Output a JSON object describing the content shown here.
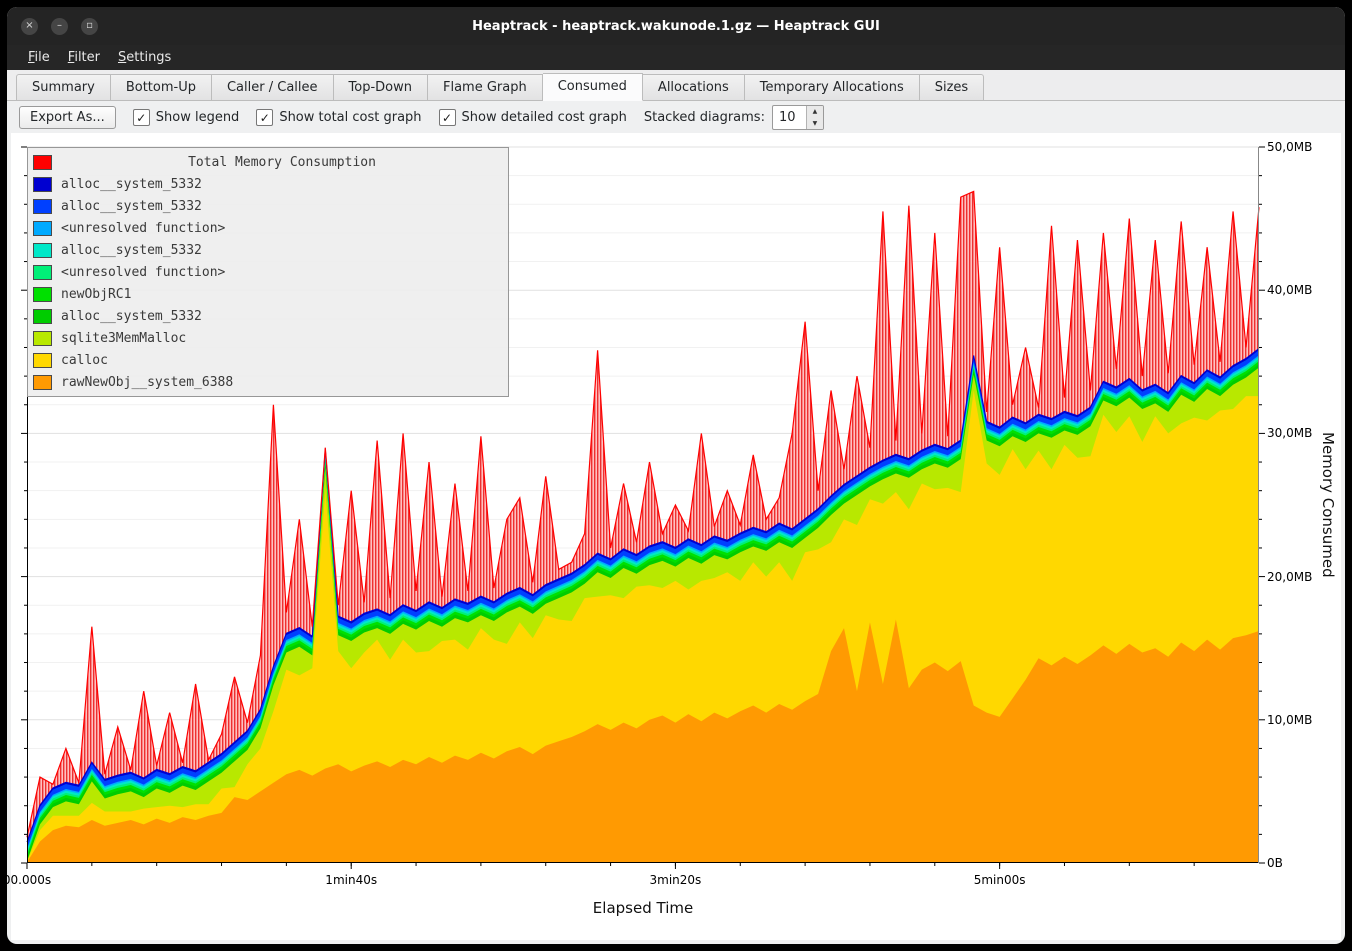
{
  "window": {
    "title": "Heaptrack - heaptrack.wakunode.1.gz — Heaptrack GUI",
    "buttons": [
      {
        "name": "close",
        "glyph": "×"
      },
      {
        "name": "minimize",
        "glyph": "–"
      },
      {
        "name": "maximize",
        "glyph": "▫"
      }
    ]
  },
  "menu": {
    "items": [
      {
        "label": "File"
      },
      {
        "label": "Filter"
      },
      {
        "label": "Settings"
      }
    ]
  },
  "tabs": {
    "items": [
      "Summary",
      "Bottom-Up",
      "Caller / Callee",
      "Top-Down",
      "Flame Graph",
      "Consumed",
      "Allocations",
      "Temporary Allocations",
      "Sizes"
    ],
    "active": "Consumed"
  },
  "toolbar": {
    "export_label": "Export As...",
    "checkboxes": [
      {
        "label": "Show legend",
        "checked": true
      },
      {
        "label": "Show total cost graph",
        "checked": true
      },
      {
        "label": "Show detailed cost graph",
        "checked": true
      }
    ],
    "stacked_label": "Stacked diagrams:",
    "stacked_value": "10"
  },
  "chart_data": {
    "type": "area",
    "title": "Total Memory Consumption",
    "xlabel": "Elapsed Time",
    "ylabel": "Memory Consumed",
    "xlim_s": [
      0,
      380
    ],
    "ylim_mb": [
      0,
      50
    ],
    "grid": {
      "minor_step_mb": 2,
      "major_step_mb": 10
    },
    "legend_position": "top-left",
    "x_ticks": [
      {
        "t": 0,
        "label": "00.000s"
      },
      {
        "t": 100,
        "label": "1min40s"
      },
      {
        "t": 200,
        "label": "3min20s"
      },
      {
        "t": 300,
        "label": "5min00s"
      }
    ],
    "y_ticks": [
      {
        "v": 0,
        "label": "0B"
      },
      {
        "v": 10,
        "label": "10,0MB"
      },
      {
        "v": 20,
        "label": "20,0MB"
      },
      {
        "v": 30,
        "label": "30,0MB"
      },
      {
        "v": 40,
        "label": "40,0MB"
      },
      {
        "v": 50,
        "label": "50,0MB"
      }
    ],
    "x_start": 0,
    "x_step_s": 4,
    "total": {
      "name": "Total Memory Consumption",
      "color": "#ff0000",
      "values": [
        1.8,
        6.0,
        5.5,
        8.0,
        5.6,
        16.5,
        6.2,
        9.5,
        6.5,
        12.0,
        6.8,
        10.5,
        7.0,
        12.5,
        7.2,
        9.0,
        13.0,
        9.8,
        14.5,
        32.0,
        17.5,
        24.0,
        16.5,
        29.0,
        18.0,
        26.0,
        18.2,
        29.5,
        18.5,
        30.0,
        19.0,
        28.0,
        18.6,
        26.5,
        19.0,
        29.8,
        19.2,
        24.0,
        25.5,
        19.6,
        27.0,
        20.5,
        21.0,
        23.0,
        35.8,
        22.0,
        26.5,
        22.4,
        28.0,
        23.0,
        25.0,
        23.2,
        30.0,
        23.5,
        26.0,
        23.6,
        28.5,
        24.0,
        25.5,
        30.0,
        37.8,
        26.0,
        33.0,
        27.5,
        34.0,
        29.0,
        45.5,
        29.5,
        45.9,
        30.0,
        44.0,
        29.8,
        46.5,
        46.9,
        31.5,
        43.0,
        32.0,
        36.0,
        31.8,
        44.5,
        32.5,
        43.5,
        33.0,
        44.0,
        34.5,
        45.0,
        34.0,
        43.5,
        34.2,
        44.8,
        34.8,
        43.0,
        35.0,
        45.5,
        36.0,
        45.8
      ]
    },
    "stack": [
      {
        "name": "rawNewObj__system_6388",
        "color": "#ff9a02",
        "values": [
          0.05,
          1.5,
          2.3,
          2.6,
          2.5,
          3.0,
          2.6,
          2.8,
          3.0,
          2.7,
          3.1,
          2.8,
          3.2,
          3.0,
          3.3,
          3.5,
          4.6,
          4.4,
          5.0,
          5.6,
          6.2,
          6.5,
          6.1,
          6.6,
          6.9,
          6.4,
          6.8,
          7.1,
          6.7,
          7.2,
          6.9,
          7.4,
          7.0,
          7.5,
          7.2,
          7.7,
          7.3,
          7.8,
          8.1,
          7.6,
          8.2,
          8.5,
          8.8,
          9.2,
          9.7,
          9.3,
          9.8,
          9.4,
          10.0,
          10.3,
          9.8,
          10.4,
          9.9,
          10.5,
          10.1,
          10.6,
          11.0,
          10.5,
          11.1,
          10.7,
          11.3,
          11.8,
          14.8,
          16.4,
          12.0,
          16.8,
          12.5,
          17.0,
          12.2,
          13.5,
          14.0,
          13.4,
          14.1,
          11.0,
          10.5,
          10.2,
          11.5,
          12.8,
          14.3,
          13.8,
          14.4,
          13.9,
          14.5,
          15.2,
          14.6,
          15.3,
          14.7,
          15.0,
          14.4,
          15.4,
          14.8,
          15.6,
          14.9,
          15.7,
          15.9,
          16.2
        ]
      },
      {
        "name": "calloc",
        "color": "#ffd800",
        "values": [
          0.05,
          0.8,
          1.0,
          0.7,
          0.8,
          1.2,
          1.0,
          0.8,
          0.6,
          1.1,
          0.8,
          1.2,
          0.7,
          1.1,
          0.8,
          1.7,
          0.7,
          2.5,
          3.0,
          5.0,
          7.3,
          6.6,
          7.5,
          19.4,
          7.9,
          7.2,
          7.9,
          8.5,
          7.5,
          8.4,
          7.8,
          7.4,
          8.5,
          8.1,
          7.7,
          8.7,
          8.3,
          7.5,
          8.7,
          8.1,
          9.1,
          8.5,
          8.1,
          9.3,
          8.9,
          9.4,
          8.7,
          9.9,
          9.4,
          8.9,
          9.9,
          8.7,
          9.8,
          9.4,
          10.2,
          9.1,
          10.0,
          9.5,
          9.9,
          9.0,
          10.4,
          10.1,
          7.6,
          7.6,
          11.6,
          8.6,
          12.6,
          8.9,
          12.5,
          13.0,
          12.1,
          12.8,
          11.8,
          22.0,
          17.4,
          16.9,
          17.4,
          14.7,
          14.5,
          13.7,
          14.8,
          14.4,
          13.9,
          16.1,
          15.5,
          15.9,
          14.7,
          16.2,
          15.6,
          15.3,
          16.3,
          15.3,
          16.7,
          16.0,
          16.7,
          16.4
        ]
      },
      {
        "name": "sqlite3MemMalloc",
        "color": "#b8e800",
        "values": [
          0.02,
          0.4,
          0.6,
          1.0,
          0.8,
          1.5,
          0.9,
          1.2,
          1.4,
          0.8,
          1.3,
          0.9,
          1.5,
          1.0,
          1.6,
          1.1,
          1.8,
          1.0,
          1.4,
          1.8,
          1.2,
          2.0,
          0.9,
          1.6,
          1.1,
          1.9,
          1.4,
          0.8,
          1.8,
          1.1,
          1.6,
          2.1,
          1.0,
          1.5,
          1.9,
          0.9,
          1.3,
          2.2,
          1.1,
          1.7,
          0.8,
          1.5,
          2.0,
          1.0,
          1.7,
          1.2,
          2.1,
          0.9,
          1.4,
          1.9,
          1.0,
          2.2,
          1.2,
          1.6,
          0.9,
          2.0,
          1.1,
          1.8,
          1.4,
          2.3,
          1.0,
          1.5,
          1.9,
          1.1,
          2.1,
          0.9,
          1.7,
          1.3,
          2.2,
          1.0,
          1.8,
          1.4,
          2.3,
          1.1,
          1.6,
          2.0,
          0.9,
          1.9,
          1.2,
          2.2,
          1.0,
          1.6,
          2.1,
          1.0,
          1.8,
          1.3,
          2.3,
          0.9,
          1.5,
          2.0,
          1.1,
          2.2,
          1.0,
          1.7,
          1.3,
          2.0
        ]
      },
      {
        "name": "alloc__system_5332",
        "color": "#00cc00",
        "const": 0.25
      },
      {
        "name": "newObjRC1",
        "color": "#00e000",
        "const": 0.2
      },
      {
        "name": "<unresolved function>",
        "color": "#00f078",
        "const": 0.15
      },
      {
        "name": "alloc__system_5332",
        "color": "#00e8c8",
        "const": 0.15
      },
      {
        "name": "<unresolved function>",
        "color": "#00aaff",
        "const": 0.12
      },
      {
        "name": "alloc__system_5332",
        "color": "#0040ff",
        "const": 0.35
      },
      {
        "name": "alloc__system_5332",
        "color": "#0000d0",
        "const": 0.12
      }
    ]
  }
}
